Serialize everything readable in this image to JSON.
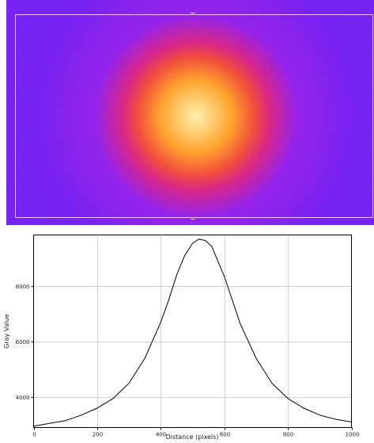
{
  "beam_image": {
    "colors": {
      "background": "#6a10f2",
      "halo": "#8c10e8",
      "mid": "#d4147e",
      "outer": "#f0402a",
      "inner": "#ff9c1c",
      "core": "#fff0a8",
      "selection": "#e8d8d0"
    }
  },
  "chart_data": {
    "type": "line",
    "xlabel": "Distance (pixels)",
    "ylabel": "Gray Value",
    "xlim": [
      0,
      1000
    ],
    "ylim": [
      2900,
      9850
    ],
    "x_ticks": [
      0,
      200,
      400,
      600,
      800,
      1000
    ],
    "y_ticks": [
      4000,
      6000,
      8000
    ],
    "grid": true,
    "legend": "none",
    "line_color": "#000000",
    "series": [
      {
        "x": [
          0,
          50,
          100,
          150,
          200,
          250,
          300,
          350,
          400,
          425,
          450,
          475,
          500,
          520,
          540,
          560,
          580,
          600,
          625,
          650,
          700,
          750,
          800,
          850,
          900,
          950,
          1000
        ],
        "values": [
          2950,
          3050,
          3150,
          3350,
          3600,
          3950,
          4500,
          5400,
          6700,
          7500,
          8400,
          9100,
          9550,
          9700,
          9650,
          9450,
          8900,
          8350,
          7500,
          6650,
          5400,
          4500,
          3950,
          3600,
          3350,
          3200,
          3100
        ]
      }
    ]
  }
}
